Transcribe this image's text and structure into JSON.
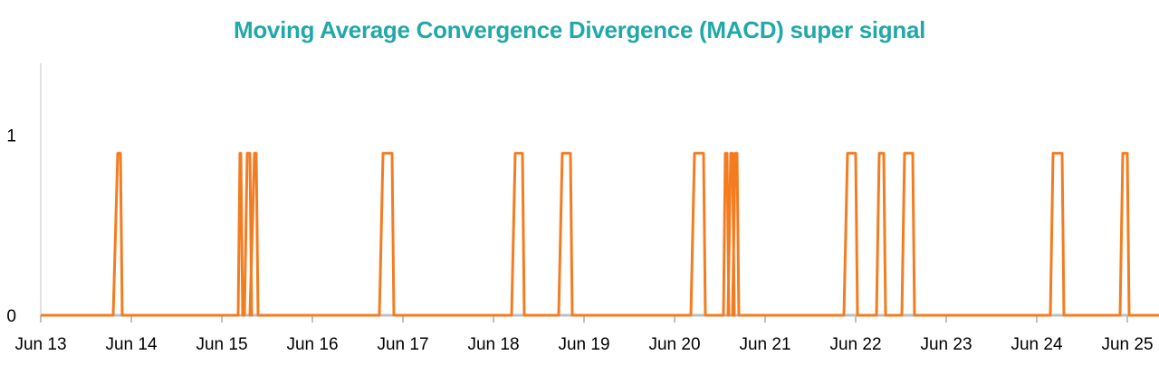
{
  "chart_data": {
    "type": "line",
    "title": "Moving Average Convergence Divergence (MACD) super signal",
    "x_ticks": [
      "Jun 13",
      "Jun 14",
      "Jun 15",
      "Jun 16",
      "Jun 17",
      "Jun 18",
      "Jun 19",
      "Jun 20",
      "Jun 21",
      "Jun 22",
      "Jun 23",
      "Jun 24",
      "Jun 25"
    ],
    "y_ticks": [
      "0",
      "1"
    ],
    "xlim": [
      13,
      25.35
    ],
    "ylim": [
      0,
      1.4
    ],
    "grid": false,
    "legend": "none",
    "series": [
      {
        "color": "#f47c20",
        "high_value": 0.9,
        "pulses": [
          [
            13.8,
            13.85,
            13.88
          ],
          [
            15.18,
            15.2,
            15.21
          ],
          [
            15.25,
            15.28,
            15.31
          ],
          [
            15.31,
            15.36,
            15.38
          ],
          [
            16.74,
            16.78,
            16.88
          ],
          [
            18.2,
            18.24,
            18.32
          ],
          [
            18.72,
            18.76,
            18.85
          ],
          [
            20.18,
            20.22,
            20.32
          ],
          [
            20.54,
            20.56,
            20.58
          ],
          [
            20.59,
            20.62,
            20.64
          ],
          [
            20.64,
            20.67,
            20.69
          ],
          [
            21.87,
            21.91,
            22.0
          ],
          [
            22.23,
            22.26,
            22.31
          ],
          [
            22.51,
            22.54,
            22.63
          ],
          [
            24.15,
            24.18,
            24.28
          ],
          [
            24.92,
            24.95,
            25.0
          ]
        ]
      }
    ]
  }
}
